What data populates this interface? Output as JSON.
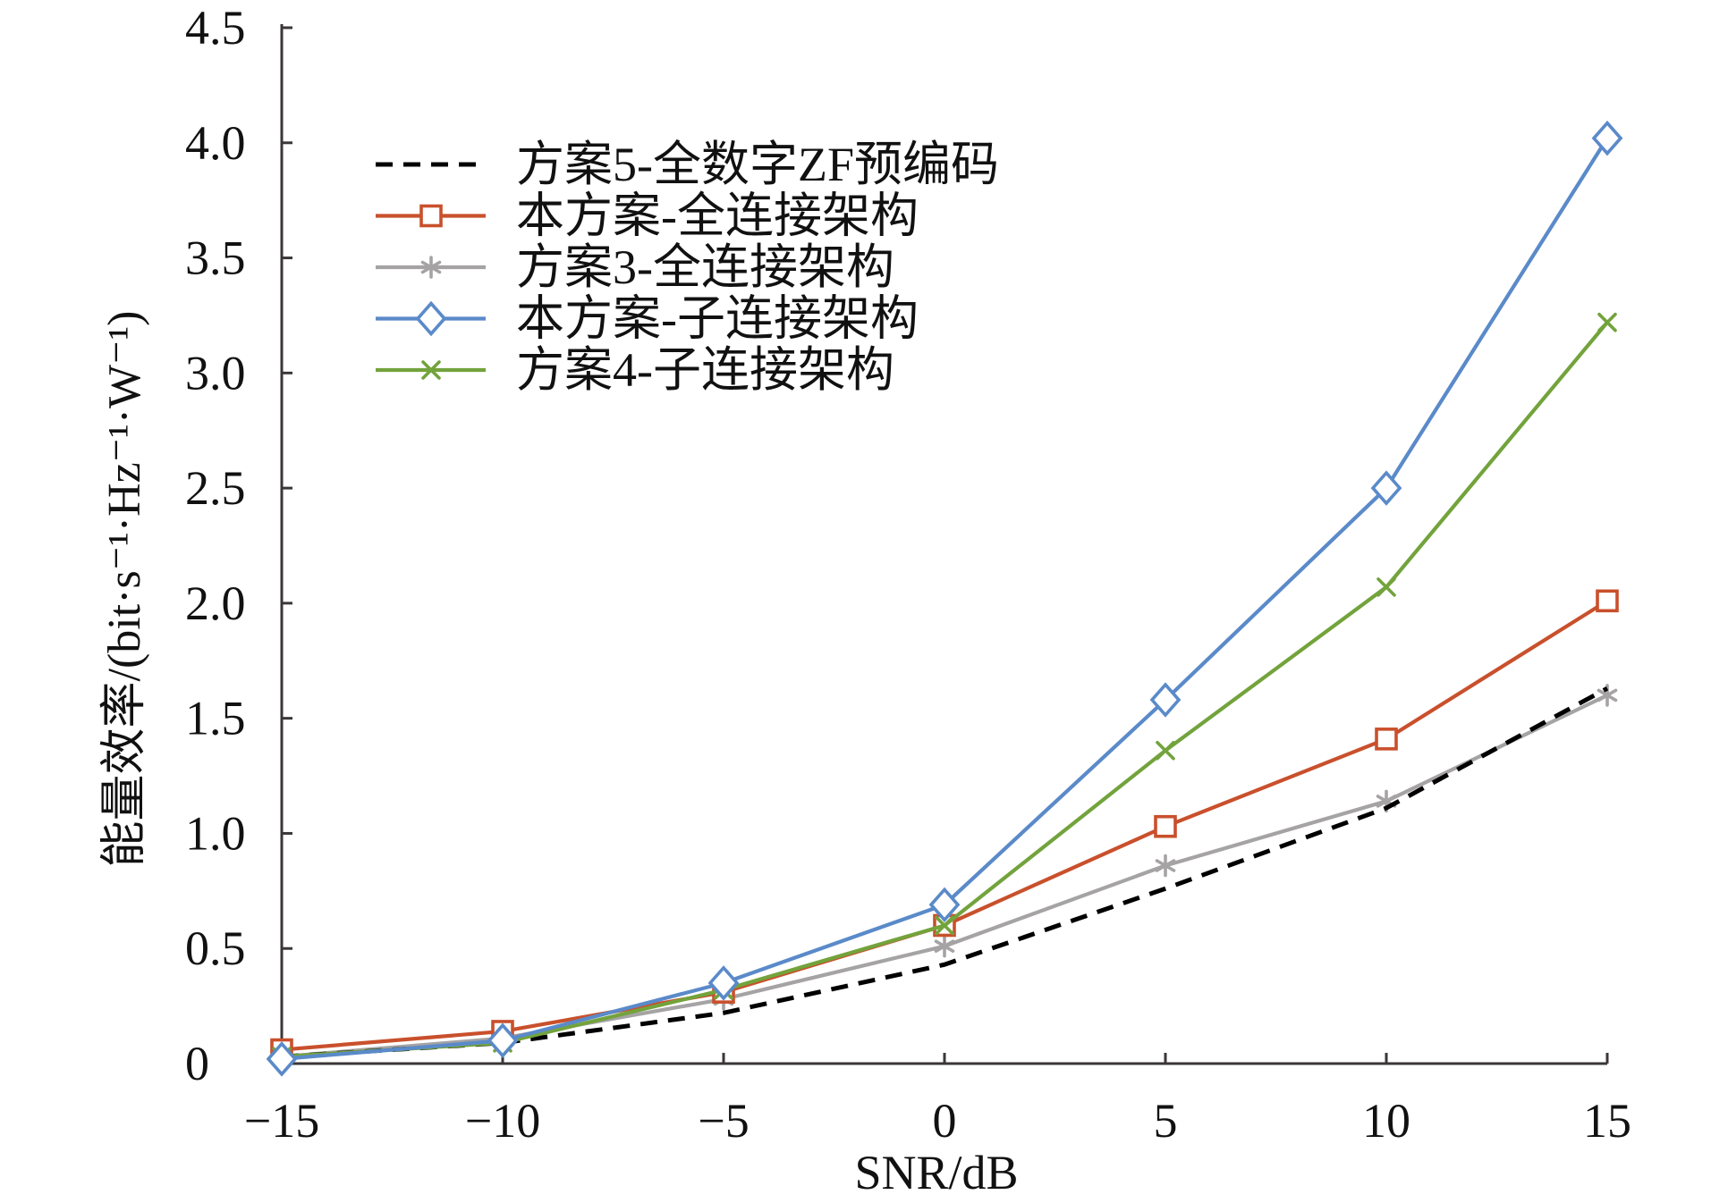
{
  "chart_data": {
    "type": "line",
    "xlabel": "SNR/dB",
    "ylabel": "能量效率/(bit·s⁻¹·Hz⁻¹·W⁻¹)",
    "x": [
      -15,
      -10,
      -5,
      0,
      5,
      10,
      15
    ],
    "xlim": [
      -15,
      15
    ],
    "ylim": [
      0,
      4.5
    ],
    "xticks": [
      -15,
      -10,
      -5,
      0,
      5,
      10,
      15
    ],
    "xtick_labels": [
      "−15",
      "−10",
      "−5",
      "0",
      "5",
      "10",
      "15"
    ],
    "yticks": [
      0,
      0.5,
      1,
      1.5,
      2,
      2.5,
      3,
      3.5,
      4,
      4.5
    ],
    "ytick_labels": [
      "0",
      "0.5",
      "1.0",
      "1.5",
      "2.0",
      "2.5",
      "3.0",
      "3.5",
      "4.0",
      "4.5"
    ],
    "grid": false,
    "legend_position": "top-left",
    "series": [
      {
        "name": "方案5-全数字ZF预编码",
        "color": "#000000",
        "line_style": "dashed",
        "marker": "none",
        "values": [
          0.03,
          0.09,
          0.22,
          0.43,
          0.76,
          1.11,
          1.63
        ]
      },
      {
        "name": "本方案-全连接架构",
        "color": "#C9502C",
        "line_style": "solid",
        "marker": "square",
        "values": [
          0.06,
          0.14,
          0.31,
          0.6,
          1.03,
          1.41,
          2.01
        ]
      },
      {
        "name": "方案3-全连接架构",
        "color": "#A5A3A4",
        "line_style": "solid",
        "marker": "asterisk",
        "values": [
          0.03,
          0.11,
          0.28,
          0.51,
          0.86,
          1.14,
          1.6
        ]
      },
      {
        "name": "本方案-子连接架构",
        "color": "#5A8AC9",
        "line_style": "solid",
        "marker": "diamond",
        "values": [
          0.02,
          0.1,
          0.35,
          0.69,
          1.58,
          2.5,
          4.02
        ]
      },
      {
        "name": "方案4-子连接架构",
        "color": "#73A33C",
        "line_style": "solid",
        "marker": "x",
        "values": [
          0.03,
          0.09,
          0.32,
          0.6,
          1.36,
          2.07,
          3.22
        ]
      }
    ]
  }
}
